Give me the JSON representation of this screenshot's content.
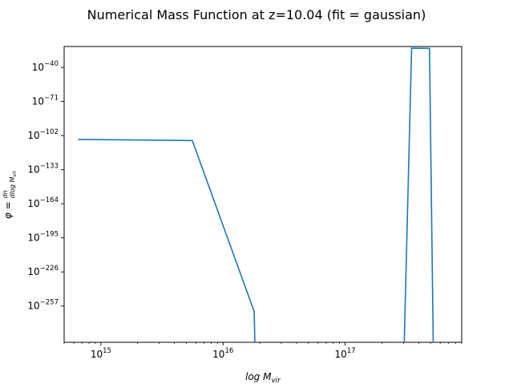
{
  "chart_data": {
    "type": "line",
    "title": "Numerical Mass Function at z=10.04 (fit = gaussian)",
    "xlabel": "log M_vir",
    "ylabel": "φ = dn/dlog M_vir",
    "xscale": "log",
    "yscale": "log",
    "xlim": [
      500000000000000.0,
      9e+17
    ],
    "ylim_exponent": [
      -290,
      -21
    ],
    "x_ticks": [
      {
        "exp": "15",
        "value": 1000000000000000.0
      },
      {
        "exp": "16",
        "value": 1e+16
      },
      {
        "exp": "17",
        "value": 1e+17
      }
    ],
    "y_ticks": [
      {
        "exp": "−40",
        "value_exp": -40
      },
      {
        "exp": "−71",
        "value_exp": -71
      },
      {
        "exp": "−102",
        "value_exp": -102
      },
      {
        "exp": "−133",
        "value_exp": -133
      },
      {
        "exp": "−164",
        "value_exp": -164
      },
      {
        "exp": "−195",
        "value_exp": -195
      },
      {
        "exp": "−226",
        "value_exp": -226
      },
      {
        "exp": "−257",
        "value_exp": -257
      }
    ],
    "grid": false,
    "color": "#1f77b4",
    "series": [
      {
        "x": [
          650000000000000.0,
          5600000000000000.0,
          1.8e+16,
          1.85e+16,
          3e+17,
          3.5e+17,
          4.9e+17,
          5.3e+17
        ],
        "log10_y": [
          -105.5,
          -106.5,
          -262,
          -320,
          -320,
          -22.5,
          -22.7,
          -320
        ]
      }
    ]
  }
}
